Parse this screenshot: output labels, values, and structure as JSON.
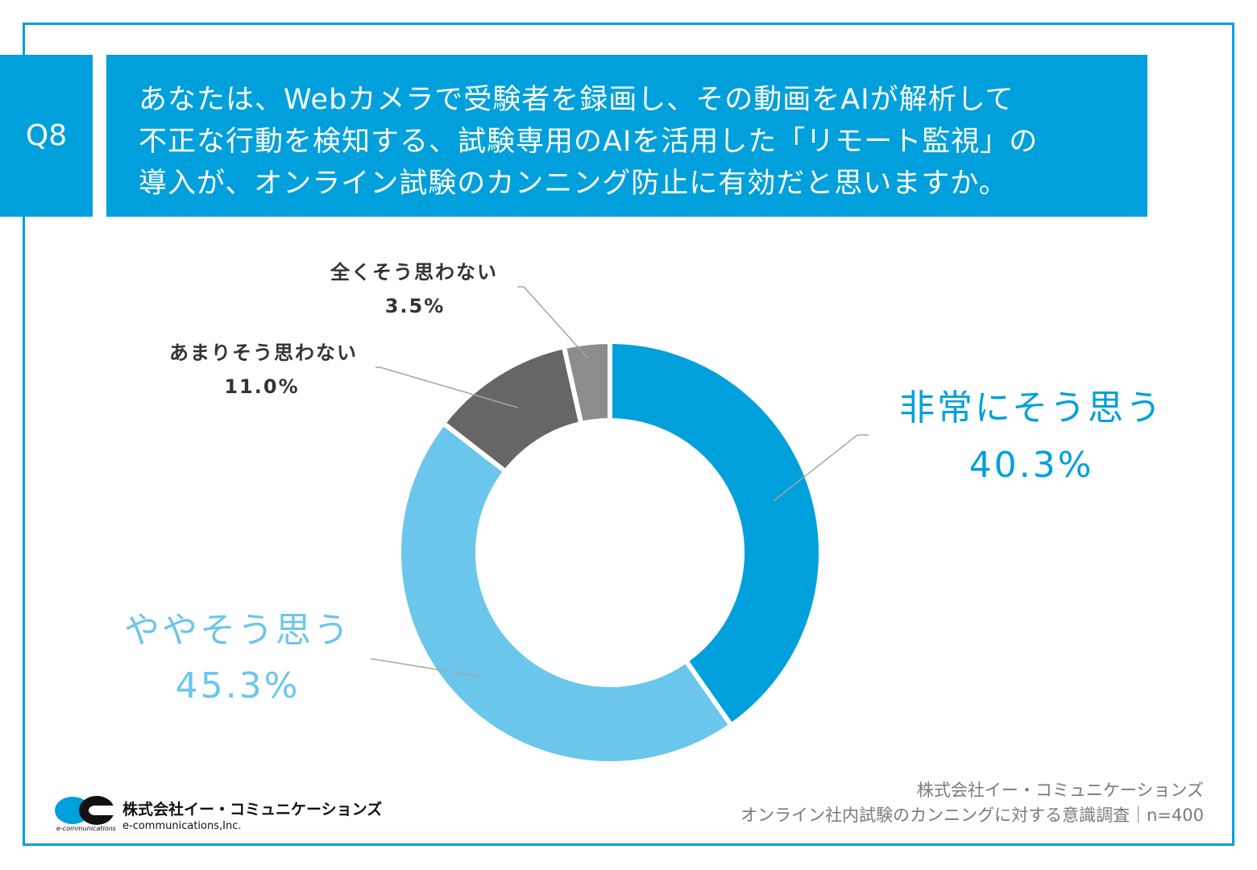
{
  "question": {
    "number": "Q8",
    "lines": [
      "あなたは、Webカメラで受験者を録画し、その動画をAIが解析して",
      "不正な行動を検知する、試験専用のAIを活用した「リモート監視」の",
      "導入が、オンライン試験のカンニング防止に有効だと思いますか。"
    ]
  },
  "chart_data": {
    "type": "pie",
    "subtype": "donut",
    "categories": [
      "非常にそう思う",
      "ややそう思う",
      "あまりそう思わない",
      "全くそう思わない"
    ],
    "values": [
      40.3,
      45.3,
      11.0,
      3.5
    ],
    "value_labels": [
      "40.3%",
      "45.3%",
      "11.0%",
      "3.5%"
    ],
    "colors": [
      "#00a0dc",
      "#6bc6ec",
      "#666666",
      "#8c8c8c"
    ],
    "start_angle": "12 o'clock",
    "direction": "clockwise"
  },
  "logo": {
    "company": "株式会社イー・コミュニケーションズ",
    "sub": "e-communications,Inc.",
    "tiny": "e-communications"
  },
  "source": {
    "line1": "株式会社イー・コミュニケーションズ",
    "line2": "オンライン社内試験のカンニングに対する意識調査｜n=400"
  }
}
